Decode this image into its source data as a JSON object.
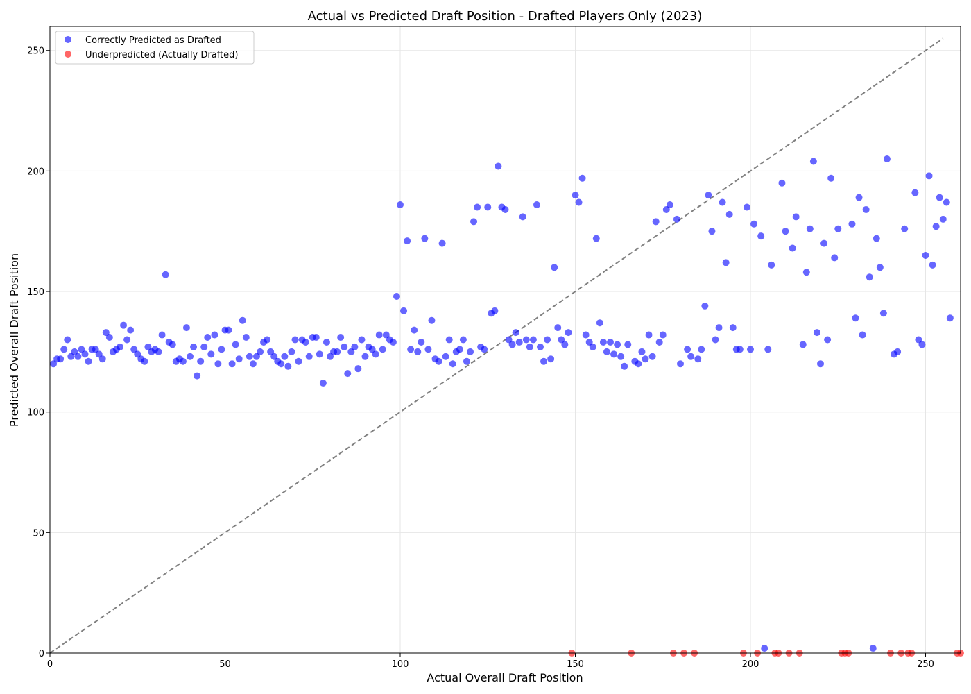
{
  "chart_data": {
    "type": "scatter",
    "title": "Actual vs Predicted Draft Position - Drafted Players Only (2023)",
    "xlabel": "Actual Overall Draft Position",
    "ylabel": "Predicted Overall Draft Position",
    "xlim": [
      0,
      260
    ],
    "ylim": [
      0,
      260
    ],
    "x_ticks": [
      0,
      50,
      100,
      150,
      200,
      250
    ],
    "y_ticks": [
      0,
      50,
      100,
      150,
      200,
      250
    ],
    "grid": true,
    "legend_position": "top-left",
    "reference_line": {
      "style": "dashed",
      "color": "#808080",
      "from": [
        0,
        0
      ],
      "to": [
        255,
        255
      ]
    },
    "series": [
      {
        "name": "Correctly Predicted as Drafted",
        "color": "#0000ff",
        "points": [
          [
            1,
            120
          ],
          [
            2,
            122
          ],
          [
            3,
            122
          ],
          [
            4,
            126
          ],
          [
            5,
            130
          ],
          [
            6,
            123
          ],
          [
            7,
            125
          ],
          [
            8,
            123
          ],
          [
            9,
            126
          ],
          [
            10,
            124
          ],
          [
            11,
            121
          ],
          [
            12,
            126
          ],
          [
            13,
            126
          ],
          [
            14,
            124
          ],
          [
            15,
            122
          ],
          [
            16,
            133
          ],
          [
            17,
            131
          ],
          [
            18,
            125
          ],
          [
            19,
            126
          ],
          [
            20,
            127
          ],
          [
            21,
            136
          ],
          [
            22,
            130
          ],
          [
            23,
            134
          ],
          [
            24,
            126
          ],
          [
            25,
            124
          ],
          [
            26,
            122
          ],
          [
            27,
            121
          ],
          [
            28,
            127
          ],
          [
            29,
            125
          ],
          [
            30,
            126
          ],
          [
            31,
            125
          ],
          [
            32,
            132
          ],
          [
            33,
            157
          ],
          [
            34,
            129
          ],
          [
            35,
            128
          ],
          [
            36,
            121
          ],
          [
            37,
            122
          ],
          [
            38,
            121
          ],
          [
            39,
            135
          ],
          [
            40,
            123
          ],
          [
            41,
            127
          ],
          [
            42,
            115
          ],
          [
            43,
            121
          ],
          [
            44,
            127
          ],
          [
            45,
            131
          ],
          [
            46,
            124
          ],
          [
            47,
            132
          ],
          [
            48,
            120
          ],
          [
            49,
            126
          ],
          [
            50,
            134
          ],
          [
            51,
            134
          ],
          [
            52,
            120
          ],
          [
            53,
            128
          ],
          [
            54,
            122
          ],
          [
            55,
            138
          ],
          [
            56,
            131
          ],
          [
            57,
            123
          ],
          [
            58,
            120
          ],
          [
            59,
            123
          ],
          [
            60,
            125
          ],
          [
            61,
            129
          ],
          [
            62,
            130
          ],
          [
            63,
            125
          ],
          [
            64,
            123
          ],
          [
            65,
            121
          ],
          [
            66,
            120
          ],
          [
            67,
            123
          ],
          [
            68,
            119
          ],
          [
            69,
            125
          ],
          [
            70,
            130
          ],
          [
            71,
            121
          ],
          [
            72,
            130
          ],
          [
            73,
            129
          ],
          [
            74,
            123
          ],
          [
            75,
            131
          ],
          [
            76,
            131
          ],
          [
            77,
            124
          ],
          [
            78,
            112
          ],
          [
            79,
            129
          ],
          [
            80,
            123
          ],
          [
            81,
            125
          ],
          [
            82,
            125
          ],
          [
            83,
            131
          ],
          [
            84,
            127
          ],
          [
            85,
            116
          ],
          [
            86,
            125
          ],
          [
            87,
            127
          ],
          [
            88,
            118
          ],
          [
            89,
            130
          ],
          [
            90,
            123
          ],
          [
            91,
            127
          ],
          [
            92,
            126
          ],
          [
            93,
            124
          ],
          [
            94,
            132
          ],
          [
            95,
            126
          ],
          [
            96,
            132
          ],
          [
            97,
            130
          ],
          [
            98,
            129
          ],
          [
            99,
            148
          ],
          [
            100,
            186
          ],
          [
            101,
            142
          ],
          [
            102,
            171
          ],
          [
            103,
            126
          ],
          [
            104,
            134
          ],
          [
            105,
            125
          ],
          [
            106,
            129
          ],
          [
            107,
            172
          ],
          [
            108,
            126
          ],
          [
            109,
            138
          ],
          [
            110,
            122
          ],
          [
            111,
            121
          ],
          [
            112,
            170
          ],
          [
            113,
            123
          ],
          [
            114,
            130
          ],
          [
            115,
            120
          ],
          [
            116,
            125
          ],
          [
            117,
            126
          ],
          [
            118,
            130
          ],
          [
            119,
            121
          ],
          [
            120,
            125
          ],
          [
            121,
            179
          ],
          [
            122,
            185
          ],
          [
            123,
            127
          ],
          [
            124,
            126
          ],
          [
            125,
            185
          ],
          [
            126,
            141
          ],
          [
            127,
            142
          ],
          [
            128,
            202
          ],
          [
            129,
            185
          ],
          [
            130,
            184
          ],
          [
            131,
            130
          ],
          [
            132,
            128
          ],
          [
            133,
            133
          ],
          [
            134,
            129
          ],
          [
            135,
            181
          ],
          [
            136,
            130
          ],
          [
            137,
            127
          ],
          [
            138,
            130
          ],
          [
            139,
            186
          ],
          [
            140,
            127
          ],
          [
            141,
            121
          ],
          [
            142,
            130
          ],
          [
            143,
            122
          ],
          [
            144,
            160
          ],
          [
            145,
            135
          ],
          [
            146,
            130
          ],
          [
            147,
            128
          ],
          [
            148,
            133
          ],
          [
            150,
            190
          ],
          [
            151,
            187
          ],
          [
            152,
            197
          ],
          [
            153,
            132
          ],
          [
            154,
            129
          ],
          [
            155,
            127
          ],
          [
            156,
            172
          ],
          [
            157,
            137
          ],
          [
            158,
            129
          ],
          [
            159,
            125
          ],
          [
            160,
            129
          ],
          [
            161,
            124
          ],
          [
            162,
            128
          ],
          [
            163,
            123
          ],
          [
            164,
            119
          ],
          [
            165,
            128
          ],
          [
            167,
            121
          ],
          [
            168,
            120
          ],
          [
            169,
            125
          ],
          [
            170,
            122
          ],
          [
            171,
            132
          ],
          [
            172,
            123
          ],
          [
            173,
            179
          ],
          [
            174,
            129
          ],
          [
            175,
            132
          ],
          [
            176,
            184
          ],
          [
            177,
            186
          ],
          [
            179,
            180
          ],
          [
            180,
            120
          ],
          [
            182,
            126
          ],
          [
            183,
            123
          ],
          [
            185,
            122
          ],
          [
            186,
            126
          ],
          [
            187,
            144
          ],
          [
            188,
            190
          ],
          [
            189,
            175
          ],
          [
            190,
            130
          ],
          [
            191,
            135
          ],
          [
            192,
            187
          ],
          [
            193,
            162
          ],
          [
            194,
            182
          ],
          [
            195,
            135
          ],
          [
            196,
            126
          ],
          [
            197,
            126
          ],
          [
            199,
            185
          ],
          [
            200,
            126
          ],
          [
            201,
            178
          ],
          [
            203,
            173
          ],
          [
            204,
            2
          ],
          [
            205,
            126
          ],
          [
            206,
            161
          ],
          [
            209,
            195
          ],
          [
            210,
            175
          ],
          [
            212,
            168
          ],
          [
            213,
            181
          ],
          [
            215,
            128
          ],
          [
            216,
            158
          ],
          [
            217,
            176
          ],
          [
            218,
            204
          ],
          [
            219,
            133
          ],
          [
            220,
            120
          ],
          [
            221,
            170
          ],
          [
            222,
            130
          ],
          [
            223,
            197
          ],
          [
            224,
            164
          ],
          [
            225,
            176
          ],
          [
            229,
            178
          ],
          [
            230,
            139
          ],
          [
            231,
            189
          ],
          [
            232,
            132
          ],
          [
            233,
            184
          ],
          [
            234,
            156
          ],
          [
            235,
            2
          ],
          [
            236,
            172
          ],
          [
            237,
            160
          ],
          [
            238,
            141
          ],
          [
            239,
            205
          ],
          [
            241,
            124
          ],
          [
            242,
            125
          ],
          [
            244,
            176
          ],
          [
            247,
            191
          ],
          [
            248,
            130
          ],
          [
            249,
            128
          ],
          [
            250,
            165
          ],
          [
            251,
            198
          ],
          [
            252,
            161
          ],
          [
            253,
            177
          ],
          [
            254,
            189
          ],
          [
            255,
            180
          ],
          [
            256,
            187
          ],
          [
            257,
            139
          ]
        ]
      },
      {
        "name": "Underpredicted (Actually Drafted)",
        "color": "#ff0000",
        "points": [
          [
            149,
            0
          ],
          [
            166,
            0
          ],
          [
            178,
            0
          ],
          [
            181,
            0
          ],
          [
            184,
            0
          ],
          [
            198,
            0
          ],
          [
            202,
            0
          ],
          [
            207,
            0
          ],
          [
            208,
            0
          ],
          [
            211,
            0
          ],
          [
            214,
            0
          ],
          [
            226,
            0
          ],
          [
            227,
            0
          ],
          [
            228,
            0
          ],
          [
            240,
            0
          ],
          [
            243,
            0
          ],
          [
            245,
            0
          ],
          [
            246,
            0
          ],
          [
            259,
            0
          ],
          [
            260,
            0
          ]
        ]
      }
    ]
  }
}
